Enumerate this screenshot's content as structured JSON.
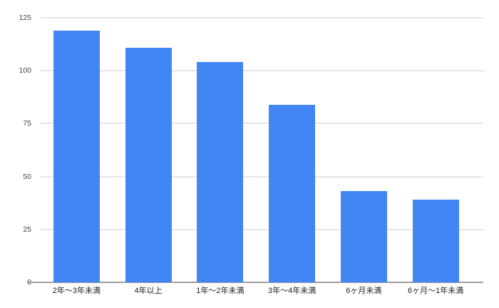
{
  "chart_data": {
    "type": "bar",
    "title": "",
    "xlabel": "",
    "ylabel": "",
    "categories": [
      "2年〜3年未満",
      "4年以上",
      "1年〜2年未満",
      "3年〜4年未満",
      "6ヶ月未満",
      "6ヶ月〜1年未満"
    ],
    "values": [
      119,
      111,
      104,
      84,
      43,
      39
    ],
    "ylim": [
      0,
      125
    ],
    "yticks": [
      0,
      25,
      50,
      75,
      100,
      125
    ],
    "grid": true,
    "legend": "none",
    "colors": {
      "bar": "#4285f4",
      "gridline": "#e6e6e6",
      "baseline": "#9e9e9e",
      "y_tick_label": "#444444",
      "x_category_label": "#222222",
      "background": "#ffffff"
    }
  }
}
